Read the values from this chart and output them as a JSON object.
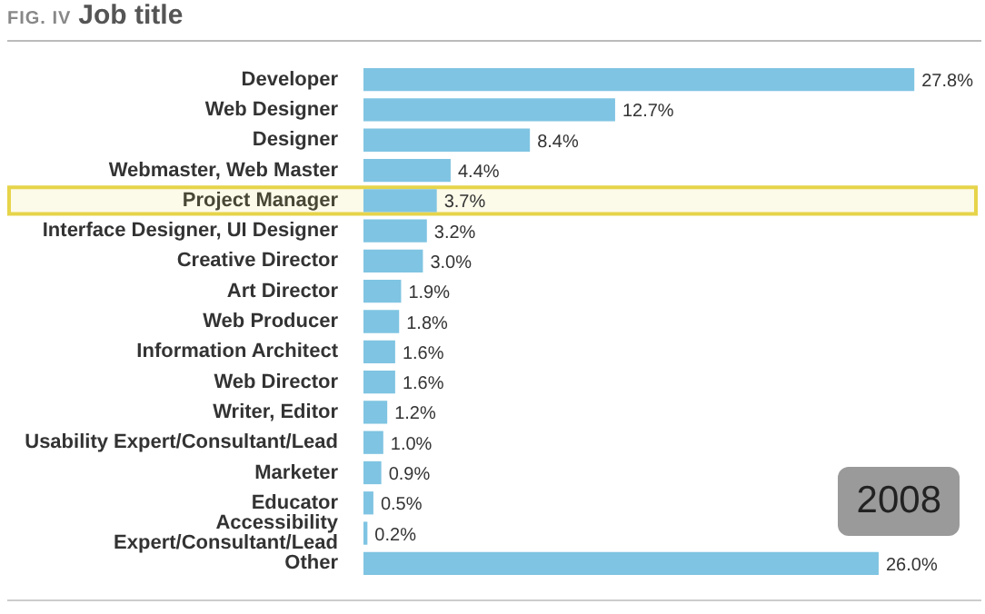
{
  "chart_data": {
    "type": "bar",
    "orientation": "horizontal",
    "subtitle": "FIG. IV",
    "title": "Job title",
    "categories": [
      "Developer",
      "Web Designer",
      "Designer",
      "Webmaster, Web Master",
      "Project Manager",
      "Interface Designer, UI Designer",
      "Creative Director",
      "Art Director",
      "Web Producer",
      "Information Architect",
      "Web Director",
      "Writer, Editor",
      "Usability Expert/Consultant/Lead",
      "Marketer",
      "Educator",
      "Accessibility Expert/Consultant/Lead",
      "Other"
    ],
    "values": [
      27.8,
      12.7,
      8.4,
      4.4,
      3.7,
      3.2,
      3.0,
      1.9,
      1.8,
      1.6,
      1.6,
      1.2,
      1.0,
      0.9,
      0.5,
      0.2,
      26.0
    ],
    "value_labels": [
      "27.8%",
      "12.7%",
      "8.4%",
      "4.4%",
      "3.7%",
      "3.2%",
      "3.0%",
      "1.9%",
      "1.8%",
      "1.6%",
      "1.6%",
      "1.2%",
      "1.0%",
      "0.9%",
      "0.5%",
      "0.2%",
      "26.0%"
    ],
    "color": "#7fc4e2",
    "xlim": [
      0,
      31
    ],
    "tick_labels": "y",
    "grid": false,
    "legend": false,
    "bands": [
      {
        "axis": "y",
        "from": "Project Manager",
        "to": "Project Manager",
        "color": "#e6d44a"
      }
    ],
    "annotations": [
      "2008"
    ]
  }
}
